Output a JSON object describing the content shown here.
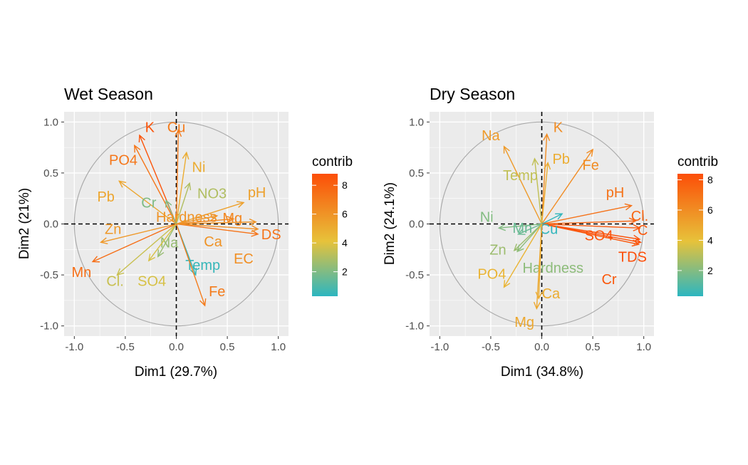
{
  "figure": {
    "legend": {
      "title": "contrib",
      "gradient_colors": [
        "#2cb6c0",
        "#e7c23a",
        "#fc4e08"
      ]
    },
    "colors": {
      "panel_bg": "#ebebeb",
      "grid": "#ffffff",
      "circle": "#aaaaaa",
      "ref_line": "#000000",
      "text_axis": "#4d4d4d"
    }
  },
  "chart_data": [
    {
      "type": "scatter",
      "subtype": "pca-variable-arrows",
      "title": "Wet Season",
      "xlabel": "Dim1 (29.7%)",
      "ylabel": "Dim2 (21%)",
      "xlim": [
        -1.1,
        1.1
      ],
      "ylim": [
        -1.1,
        1.1
      ],
      "xticks": [
        "-1.0",
        "-0.5",
        "0.0",
        "0.5",
        "1.0"
      ],
      "yticks": [
        "-1.0",
        "-0.5",
        "0.0",
        "0.5",
        "1.0"
      ],
      "unit_circle": true,
      "legend_ticks": [
        "2",
        "4",
        "6",
        "8"
      ],
      "contrib_range": [
        0.3,
        8.8
      ],
      "variables": [
        {
          "label": "K",
          "x": -0.36,
          "y": 0.87,
          "lx": -0.26,
          "ly": 0.95,
          "contrib": 8.5
        },
        {
          "label": "Cu",
          "x": 0.02,
          "y": 0.92,
          "lx": 0.0,
          "ly": 0.95,
          "contrib": 7.0
        },
        {
          "label": "PO4",
          "x": -0.41,
          "y": 0.77,
          "lx": -0.52,
          "ly": 0.63,
          "contrib": 7.2
        },
        {
          "label": "Ni",
          "x": 0.1,
          "y": 0.7,
          "lx": 0.22,
          "ly": 0.56,
          "contrib": 5.0
        },
        {
          "label": "NO3",
          "x": 0.13,
          "y": 0.4,
          "lx": 0.35,
          "ly": 0.3,
          "contrib": 3.0
        },
        {
          "label": "pH",
          "x": 0.66,
          "y": 0.21,
          "lx": 0.79,
          "ly": 0.31,
          "contrib": 5.5
        },
        {
          "label": "Pb",
          "x": -0.56,
          "y": 0.42,
          "lx": -0.69,
          "ly": 0.27,
          "contrib": 5.3
        },
        {
          "label": "Cr",
          "x": -0.1,
          "y": 0.23,
          "lx": -0.27,
          "ly": 0.21,
          "contrib": 2.0
        },
        {
          "label": "Hardness",
          "x": 0.4,
          "y": 0.08,
          "lx": 0.1,
          "ly": 0.07,
          "contrib": 6.0
        },
        {
          "label": "Mg",
          "x": 0.56,
          "y": 0.05,
          "lx": 0.55,
          "ly": 0.06,
          "contrib": 6.5
        },
        {
          "label": "DS",
          "x": 0.8,
          "y": -0.1,
          "lx": 0.93,
          "ly": -0.1,
          "contrib": 7.3
        },
        {
          "label": "Ca",
          "x": 0.78,
          "y": 0.02,
          "lx": 0.36,
          "ly": -0.17,
          "contrib": 6.0
        },
        {
          "label": "Zn",
          "x": -0.74,
          "y": -0.18,
          "lx": -0.62,
          "ly": -0.05,
          "contrib": 5.8
        },
        {
          "label": "Na",
          "x": -0.18,
          "y": -0.32,
          "lx": -0.07,
          "ly": -0.18,
          "contrib": 2.5
        },
        {
          "label": "EC",
          "x": 0.8,
          "y": -0.05,
          "lx": 0.66,
          "ly": -0.34,
          "contrib": 6.2
        },
        {
          "label": "Temp",
          "x": 0.19,
          "y": -0.5,
          "lx": 0.26,
          "ly": -0.4,
          "contrib": 0.5
        },
        {
          "label": "Mn",
          "x": -0.82,
          "y": -0.37,
          "lx": -0.93,
          "ly": -0.47,
          "contrib": 7.5
        },
        {
          "label": "Cl.",
          "x": -0.58,
          "y": -0.5,
          "lx": -0.6,
          "ly": -0.56,
          "contrib": 3.5
        },
        {
          "label": "SO4",
          "x": -0.27,
          "y": -0.36,
          "lx": -0.24,
          "ly": -0.56,
          "contrib": 3.8
        },
        {
          "label": "Fe",
          "x": 0.28,
          "y": -0.8,
          "lx": 0.4,
          "ly": -0.66,
          "contrib": 7.0
        }
      ]
    },
    {
      "type": "scatter",
      "subtype": "pca-variable-arrows",
      "title": "Dry Season",
      "xlabel": "Dim1 (34.8%)",
      "ylabel": "Dim2 (24.1%)",
      "xlim": [
        -1.1,
        1.1
      ],
      "ylim": [
        -1.1,
        1.1
      ],
      "xticks": [
        "-1.0",
        "-0.5",
        "0.0",
        "0.5",
        "1.0"
      ],
      "yticks": [
        "-1.0",
        "-0.5",
        "0.0",
        "0.5",
        "1.0"
      ],
      "unit_circle": true,
      "legend_ticks": [
        "2",
        "4",
        "6",
        "8"
      ],
      "contrib_range": [
        0.3,
        8.4
      ],
      "variables": [
        {
          "label": "K",
          "x": 0.05,
          "y": 0.88,
          "lx": 0.16,
          "ly": 0.95,
          "contrib": 6.0
        },
        {
          "label": "Na",
          "x": -0.37,
          "y": 0.76,
          "lx": -0.5,
          "ly": 0.87,
          "contrib": 5.5
        },
        {
          "label": "Pb",
          "x": 0.06,
          "y": 0.6,
          "lx": 0.19,
          "ly": 0.64,
          "contrib": 4.8
        },
        {
          "label": "Fe",
          "x": 0.5,
          "y": 0.73,
          "lx": 0.48,
          "ly": 0.58,
          "contrib": 6.0
        },
        {
          "label": "Temp",
          "x": -0.07,
          "y": 0.64,
          "lx": -0.21,
          "ly": 0.48,
          "contrib": 3.2
        },
        {
          "label": "pH",
          "x": 0.88,
          "y": 0.18,
          "lx": 0.72,
          "ly": 0.31,
          "contrib": 7.0
        },
        {
          "label": "Cl.",
          "x": 0.92,
          "y": 0.03,
          "lx": 0.96,
          "ly": 0.08,
          "contrib": 7.5
        },
        {
          "label": "C",
          "x": 0.96,
          "y": -0.04,
          "lx": 0.99,
          "ly": -0.06,
          "contrib": 8.0
        },
        {
          "label": "SO4",
          "x": 0.96,
          "y": -0.15,
          "lx": 0.56,
          "ly": -0.11,
          "contrib": 8.2
        },
        {
          "label": "TDS",
          "x": 0.97,
          "y": -0.18,
          "lx": 0.89,
          "ly": -0.32,
          "contrib": 8.4
        },
        {
          "label": "Cr",
          "x": 0.95,
          "y": -0.2,
          "lx": 0.66,
          "ly": -0.54,
          "contrib": 8.0
        },
        {
          "label": "Ni",
          "x": -0.42,
          "y": -0.04,
          "lx": -0.54,
          "ly": 0.07,
          "contrib": 2.0
        },
        {
          "label": "Mn",
          "x": -0.23,
          "y": -0.1,
          "lx": -0.19,
          "ly": -0.04,
          "contrib": 1.5
        },
        {
          "label": "Cu",
          "x": 0.2,
          "y": 0.1,
          "lx": 0.07,
          "ly": -0.05,
          "contrib": 0.4
        },
        {
          "label": "Zn",
          "x": -0.27,
          "y": -0.26,
          "lx": -0.43,
          "ly": -0.25,
          "contrib": 2.5
        },
        {
          "label": "Hardness",
          "x": -0.24,
          "y": -0.27,
          "lx": 0.11,
          "ly": -0.43,
          "contrib": 2.2
        },
        {
          "label": "PO4",
          "x": -0.37,
          "y": -0.62,
          "lx": -0.49,
          "ly": -0.49,
          "contrib": 4.5
        },
        {
          "label": "Ca",
          "x": -0.03,
          "y": -0.73,
          "lx": 0.09,
          "ly": -0.68,
          "contrib": 4.8
        },
        {
          "label": "Mg",
          "x": -0.05,
          "y": -0.83,
          "lx": -0.17,
          "ly": -0.96,
          "contrib": 5.0
        }
      ]
    }
  ]
}
